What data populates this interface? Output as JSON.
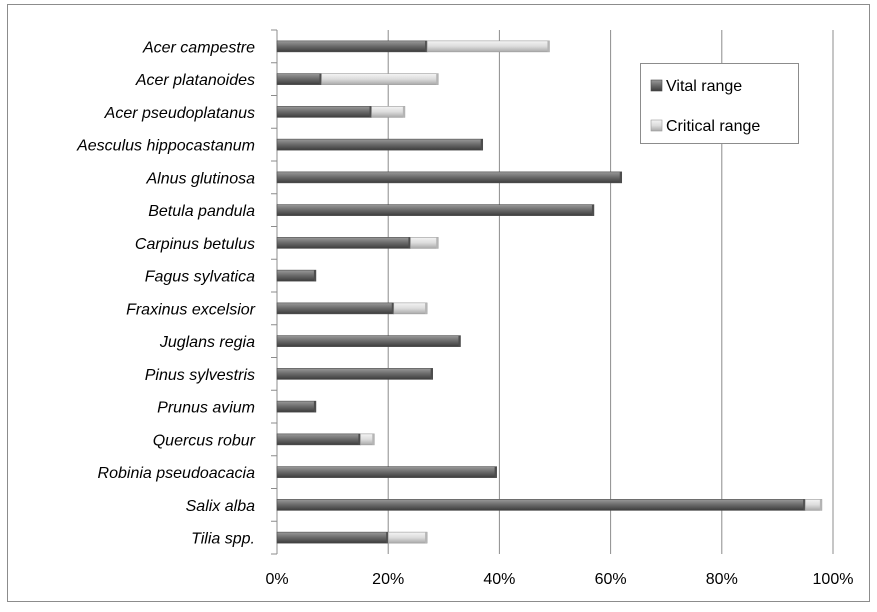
{
  "chart_data": {
    "type": "bar",
    "orientation": "horizontal",
    "stacked": true,
    "categories": [
      "Acer campestre",
      "Acer platanoides",
      "Acer pseudoplatanus",
      "Aesculus hippocastanum",
      "Alnus glutinosa",
      "Betula pandula",
      "Carpinus betulus",
      "Fagus sylvatica",
      "Fraxinus excelsior",
      "Juglans regia",
      "Pinus sylvestris",
      "Prunus avium",
      "Quercus robur",
      "Robinia pseudoacacia",
      "Salix alba",
      "Tilia spp."
    ],
    "series": [
      {
        "name": "Vital range",
        "color": "#6b6b6b",
        "values": [
          27,
          8,
          17,
          37,
          62,
          57,
          24,
          7,
          21,
          33,
          28,
          7,
          15,
          39.5,
          95,
          20
        ]
      },
      {
        "name": "Critical range",
        "color": "#d4d4d4",
        "values": [
          22,
          21,
          6,
          0,
          0,
          0,
          5,
          0,
          6,
          0,
          0,
          0,
          2.5,
          0,
          3,
          7
        ]
      }
    ],
    "title": "",
    "xlabel": "",
    "ylabel": "",
    "xlim": [
      0,
      100
    ],
    "x_ticks": [
      "0%",
      "20%",
      "40%",
      "60%",
      "80%",
      "100%"
    ],
    "grid": "vertical",
    "legend_position": "top-right",
    "category_label_style": "italic"
  }
}
